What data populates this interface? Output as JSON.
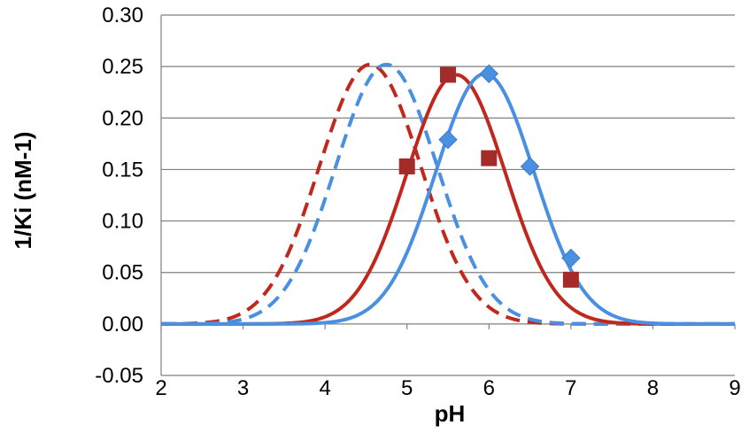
{
  "chart_data": {
    "type": "line",
    "xlabel": "pH",
    "ylabel": "1/Ki (nM-1)",
    "xlim": [
      2,
      9
    ],
    "ylim": [
      -0.05,
      0.3
    ],
    "x_ticks": [
      "2",
      "3",
      "4",
      "5",
      "6",
      "7",
      "8",
      "9"
    ],
    "y_ticks": [
      "-0.05",
      "0.00",
      "0.05",
      "0.10",
      "0.15",
      "0.20",
      "0.25",
      "0.30"
    ],
    "grid": "horizontal",
    "legend": "none",
    "series": [
      {
        "style": "dashed",
        "color": "#C0281E",
        "peak_x": 4.55,
        "peak_y": 0.252,
        "sigma": 0.62,
        "markers": []
      },
      {
        "style": "dashed",
        "color": "#4A90E2",
        "peak_x": 4.75,
        "peak_y": 0.252,
        "sigma": 0.62,
        "markers": []
      },
      {
        "style": "solid",
        "color": "#C0281E",
        "peak_x": 5.6,
        "peak_y": 0.242,
        "sigma": 0.6,
        "marker_shape": "square",
        "marker_color": "#A52A2A",
        "markers": [
          [
            5.0,
            0.153
          ],
          [
            5.5,
            0.242
          ],
          [
            6.0,
            0.161
          ],
          [
            7.0,
            0.043
          ]
        ]
      },
      {
        "style": "solid",
        "color": "#4A90E2",
        "peak_x": 5.95,
        "peak_y": 0.243,
        "sigma": 0.6,
        "marker_shape": "diamond",
        "marker_color": "#4A90E2",
        "markers": [
          [
            5.5,
            0.179
          ],
          [
            6.0,
            0.243
          ],
          [
            6.5,
            0.153
          ],
          [
            7.0,
            0.064
          ]
        ]
      }
    ]
  }
}
